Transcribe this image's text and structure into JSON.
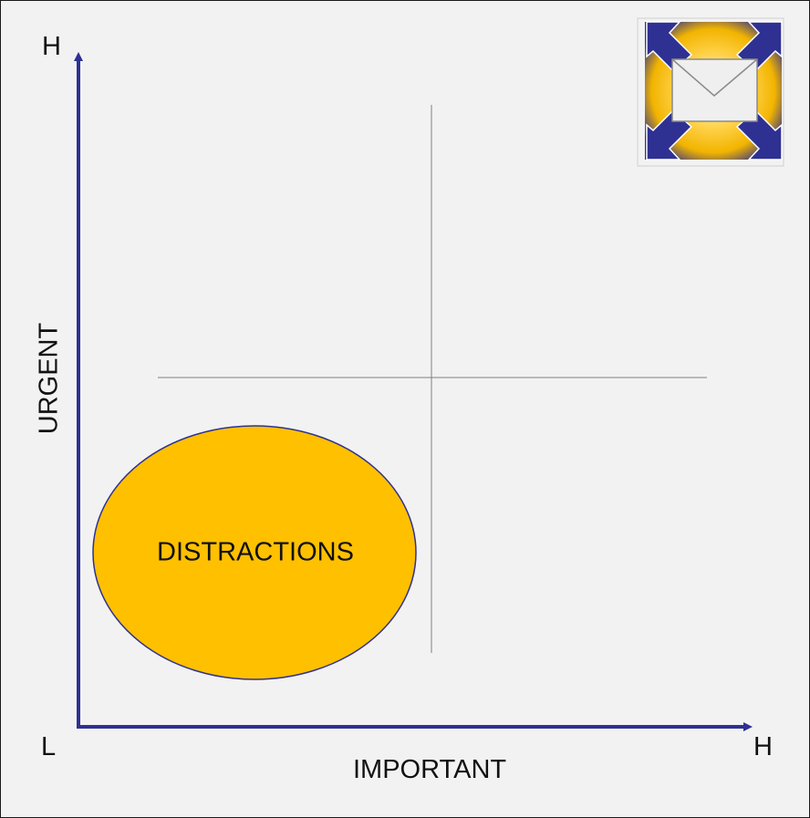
{
  "axes": {
    "y_title": "URGENT",
    "x_title": "IMPORTANT",
    "y_high": "H",
    "origin_low": "L",
    "x_high": "H"
  },
  "quadrant": {
    "label": "DISTRACTIONS"
  },
  "colors": {
    "axis": "#2e3192",
    "blob": "#ffc000",
    "blob_outline": "#2e3192",
    "divider": "#808080",
    "background": "#f2f2f2"
  },
  "logo": {
    "icon": "envelope-expand-icon"
  }
}
